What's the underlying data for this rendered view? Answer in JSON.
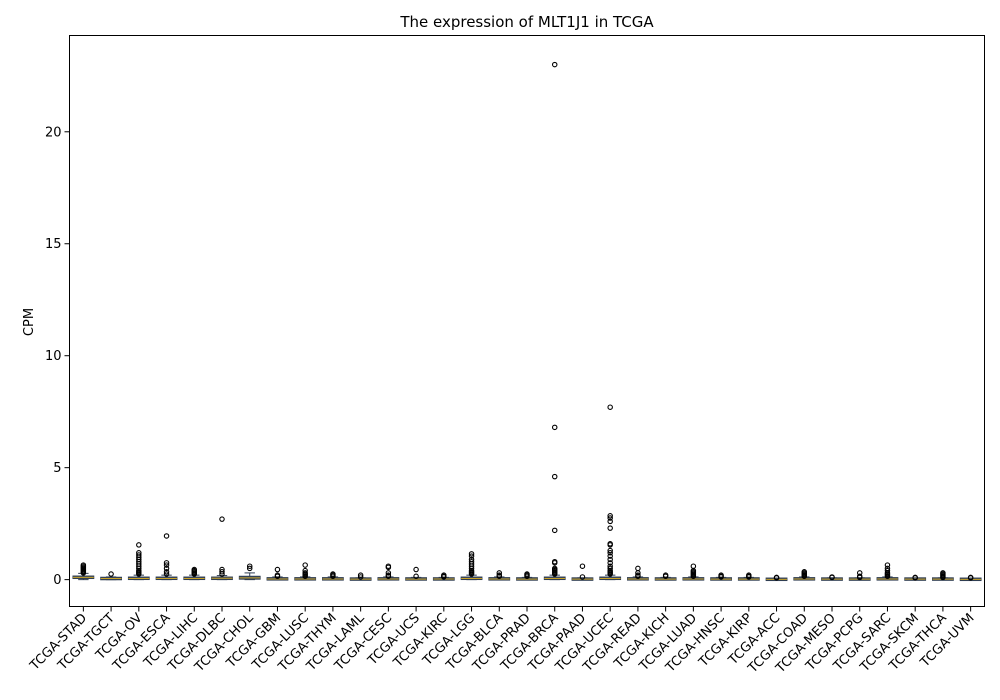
{
  "chart_data": {
    "type": "box",
    "title": "The expression of MLT1J1 in TCGA",
    "xlabel": "",
    "ylabel": "CPM",
    "ylim": [
      -1.2,
      24.3
    ],
    "yticks": [
      0,
      5,
      10,
      15,
      20
    ],
    "grid": false,
    "legend": "none",
    "colors": {
      "box_fill": "#3e4f66",
      "box_edge": "#2f3d52",
      "median": "#c9a227",
      "outlier": "#000000"
    },
    "categories": [
      "TCGA-STAD",
      "TCGA-TGCT",
      "TCGA-OV",
      "TCGA-ESCA",
      "TCGA-LIHC",
      "TCGA-DLBC",
      "TCGA-CHOL",
      "TCGA-GBM",
      "TCGA-LUSC",
      "TCGA-THYM",
      "TCGA-LAML",
      "TCGA-CESC",
      "TCGA-UCS",
      "TCGA-KIRC",
      "TCGA-LGG",
      "TCGA-BLCA",
      "TCGA-PRAD",
      "TCGA-BRCA",
      "TCGA-PAAD",
      "TCGA-UCEC",
      "TCGA-READ",
      "TCGA-KICH",
      "TCGA-LUAD",
      "TCGA-HNSC",
      "TCGA-KIRP",
      "TCGA-ACC",
      "TCGA-COAD",
      "TCGA-MESO",
      "TCGA-PCPG",
      "TCGA-SARC",
      "TCGA-SKCM",
      "TCGA-THCA",
      "TCGA-UVM"
    ],
    "boxes": [
      {
        "q1": 0.05,
        "median": 0.1,
        "q3": 0.16,
        "whisker_low": 0,
        "whisker_high": 0.28,
        "outliers": [
          0.3,
          0.35,
          0.4,
          0.45,
          0.5,
          0.55,
          0.6,
          0.65
        ]
      },
      {
        "q1": 0.02,
        "median": 0.05,
        "q3": 0.08,
        "whisker_low": 0,
        "whisker_high": 0.12,
        "outliers": [
          0.25
        ]
      },
      {
        "q1": 0.02,
        "median": 0.05,
        "q3": 0.1,
        "whisker_low": 0,
        "whisker_high": 0.2,
        "outliers": [
          0.25,
          0.3,
          0.35,
          0.4,
          0.5,
          0.6,
          0.7,
          0.8,
          0.9,
          1.0,
          1.1,
          1.2,
          1.55
        ]
      },
      {
        "q1": 0.02,
        "median": 0.05,
        "q3": 0.1,
        "whisker_low": 0,
        "whisker_high": 0.2,
        "outliers": [
          0.25,
          0.35,
          0.5,
          0.65,
          0.75,
          1.95
        ]
      },
      {
        "q1": 0.02,
        "median": 0.05,
        "q3": 0.1,
        "whisker_low": 0,
        "whisker_high": 0.2,
        "outliers": [
          0.25,
          0.3,
          0.35,
          0.4,
          0.45
        ]
      },
      {
        "q1": 0.02,
        "median": 0.06,
        "q3": 0.1,
        "whisker_low": 0,
        "whisker_high": 0.18,
        "outliers": [
          0.25,
          0.35,
          0.45,
          2.7
        ]
      },
      {
        "q1": 0.02,
        "median": 0.08,
        "q3": 0.15,
        "whisker_low": 0,
        "whisker_high": 0.3,
        "outliers": [
          0.5,
          0.6
        ]
      },
      {
        "q1": 0.01,
        "median": 0.03,
        "q3": 0.06,
        "whisker_low": 0,
        "whisker_high": 0.12,
        "outliers": [
          0.15,
          0.2,
          0.45
        ]
      },
      {
        "q1": 0.01,
        "median": 0.03,
        "q3": 0.06,
        "whisker_low": 0,
        "whisker_high": 0.12,
        "outliers": [
          0.15,
          0.2,
          0.25,
          0.3,
          0.4,
          0.65
        ]
      },
      {
        "q1": 0.01,
        "median": 0.03,
        "q3": 0.06,
        "whisker_low": 0,
        "whisker_high": 0.12,
        "outliers": [
          0.15,
          0.2,
          0.25
        ]
      },
      {
        "q1": 0.01,
        "median": 0.02,
        "q3": 0.04,
        "whisker_low": 0,
        "whisker_high": 0.08,
        "outliers": [
          0.12,
          0.2
        ]
      },
      {
        "q1": 0.01,
        "median": 0.03,
        "q3": 0.06,
        "whisker_low": 0,
        "whisker_high": 0.12,
        "outliers": [
          0.15,
          0.2,
          0.3,
          0.55,
          0.6
        ]
      },
      {
        "q1": 0.01,
        "median": 0.02,
        "q3": 0.05,
        "whisker_low": 0,
        "whisker_high": 0.1,
        "outliers": [
          0.15,
          0.45
        ]
      },
      {
        "q1": 0.01,
        "median": 0.03,
        "q3": 0.05,
        "whisker_low": 0,
        "whisker_high": 0.1,
        "outliers": [
          0.12,
          0.15,
          0.2
        ]
      },
      {
        "q1": 0.02,
        "median": 0.05,
        "q3": 0.1,
        "whisker_low": 0,
        "whisker_high": 0.2,
        "outliers": [
          0.25,
          0.3,
          0.35,
          0.4,
          0.5,
          0.6,
          0.7,
          0.8,
          0.9,
          1.05,
          1.15
        ]
      },
      {
        "q1": 0.01,
        "median": 0.03,
        "q3": 0.06,
        "whisker_low": 0,
        "whisker_high": 0.12,
        "outliers": [
          0.15,
          0.2,
          0.3
        ]
      },
      {
        "q1": 0.01,
        "median": 0.02,
        "q3": 0.05,
        "whisker_low": 0,
        "whisker_high": 0.1,
        "outliers": [
          0.15,
          0.2,
          0.25
        ]
      },
      {
        "q1": 0.02,
        "median": 0.05,
        "q3": 0.1,
        "whisker_low": 0,
        "whisker_high": 0.2,
        "outliers": [
          0.25,
          0.3,
          0.35,
          0.4,
          0.45,
          0.5,
          0.75,
          0.8,
          2.2,
          4.6,
          6.8,
          23.0
        ]
      },
      {
        "q1": 0.01,
        "median": 0.02,
        "q3": 0.04,
        "whisker_low": 0,
        "whisker_high": 0.08,
        "outliers": [
          0.12,
          0.6
        ]
      },
      {
        "q1": 0.02,
        "median": 0.05,
        "q3": 0.1,
        "whisker_low": 0,
        "whisker_high": 0.2,
        "outliers": [
          0.25,
          0.3,
          0.35,
          0.4,
          0.5,
          0.6,
          0.75,
          0.9,
          1.05,
          1.2,
          1.3,
          1.55,
          1.6,
          2.3,
          2.6,
          2.75,
          2.85,
          7.7
        ]
      },
      {
        "q1": 0.01,
        "median": 0.03,
        "q3": 0.06,
        "whisker_low": 0,
        "whisker_high": 0.12,
        "outliers": [
          0.15,
          0.2,
          0.3,
          0.5
        ]
      },
      {
        "q1": 0.01,
        "median": 0.02,
        "q3": 0.05,
        "whisker_low": 0,
        "whisker_high": 0.1,
        "outliers": [
          0.15,
          0.2
        ]
      },
      {
        "q1": 0.01,
        "median": 0.03,
        "q3": 0.06,
        "whisker_low": 0,
        "whisker_high": 0.12,
        "outliers": [
          0.15,
          0.2,
          0.25,
          0.3,
          0.35,
          0.4,
          0.6
        ]
      },
      {
        "q1": 0.01,
        "median": 0.02,
        "q3": 0.05,
        "whisker_low": 0,
        "whisker_high": 0.1,
        "outliers": [
          0.12,
          0.15,
          0.2
        ]
      },
      {
        "q1": 0.01,
        "median": 0.02,
        "q3": 0.05,
        "whisker_low": 0,
        "whisker_high": 0.1,
        "outliers": [
          0.12,
          0.15,
          0.2
        ]
      },
      {
        "q1": 0.0,
        "median": 0.01,
        "q3": 0.03,
        "whisker_low": 0,
        "whisker_high": 0.05,
        "outliers": [
          0.08,
          0.1
        ]
      },
      {
        "q1": 0.01,
        "median": 0.03,
        "q3": 0.06,
        "whisker_low": 0,
        "whisker_high": 0.12,
        "outliers": [
          0.15,
          0.2,
          0.25,
          0.3,
          0.35
        ]
      },
      {
        "q1": 0.01,
        "median": 0.02,
        "q3": 0.04,
        "whisker_low": 0,
        "whisker_high": 0.08,
        "outliers": [
          0.1,
          0.12
        ]
      },
      {
        "q1": 0.01,
        "median": 0.02,
        "q3": 0.04,
        "whisker_low": 0,
        "whisker_high": 0.08,
        "outliers": [
          0.1,
          0.15,
          0.3
        ]
      },
      {
        "q1": 0.01,
        "median": 0.03,
        "q3": 0.06,
        "whisker_low": 0,
        "whisker_high": 0.12,
        "outliers": [
          0.15,
          0.2,
          0.25,
          0.3,
          0.4,
          0.5,
          0.65
        ]
      },
      {
        "q1": 0.01,
        "median": 0.02,
        "q3": 0.04,
        "whisker_low": 0,
        "whisker_high": 0.06,
        "outliers": [
          0.08,
          0.1
        ]
      },
      {
        "q1": 0.01,
        "median": 0.02,
        "q3": 0.04,
        "whisker_low": 0,
        "whisker_high": 0.08,
        "outliers": [
          0.1,
          0.15,
          0.2,
          0.25,
          0.3
        ]
      },
      {
        "q1": 0.0,
        "median": 0.01,
        "q3": 0.03,
        "whisker_low": 0,
        "whisker_high": 0.05,
        "outliers": [
          0.08,
          0.1
        ]
      }
    ]
  }
}
